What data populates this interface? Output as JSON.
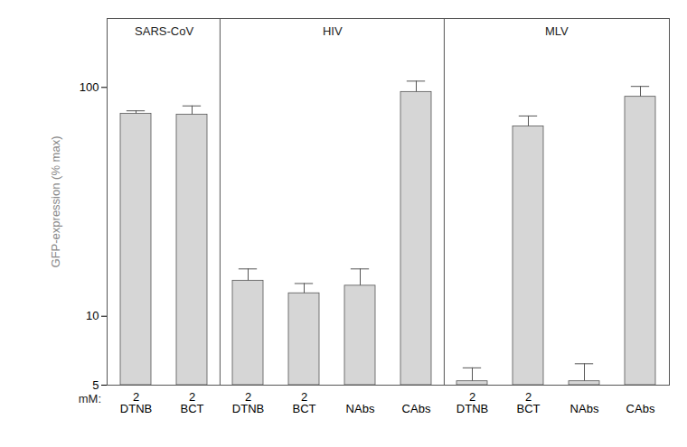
{
  "chart_data": {
    "type": "bar",
    "log": "y",
    "y_label": "GFP-expression (% max)",
    "ylim": [
      5,
      200
    ],
    "yticks": [
      5,
      10,
      100
    ],
    "grid": false,
    "color": "#d6d6d6",
    "row_label": "mM:",
    "panels": [
      {
        "title": "SARS-CoV",
        "categories": [
          "DTNB",
          "BCT"
        ],
        "concentrations": [
          2,
          2
        ],
        "values": [
          76.7,
          76
        ],
        "errors": [
          2.3,
          7
        ]
      },
      {
        "title": "HIV",
        "categories": [
          "DTNB",
          "BCT",
          "NAbs",
          "CAbs"
        ],
        "concentrations": [
          2,
          2,
          null,
          null
        ],
        "values": [
          14.3,
          12.6,
          13.6,
          95.5
        ],
        "errors": [
          1.8,
          1.3,
          2.5,
          11
        ]
      },
      {
        "title": "MLV",
        "categories": [
          "DTNB",
          "BCT",
          "NAbs",
          "CAbs"
        ],
        "concentrations": [
          2,
          2,
          null,
          null
        ],
        "values": [
          5.2,
          67.5,
          5.2,
          91
        ],
        "errors": [
          0.75,
          7.5,
          1,
          10
        ]
      }
    ]
  }
}
